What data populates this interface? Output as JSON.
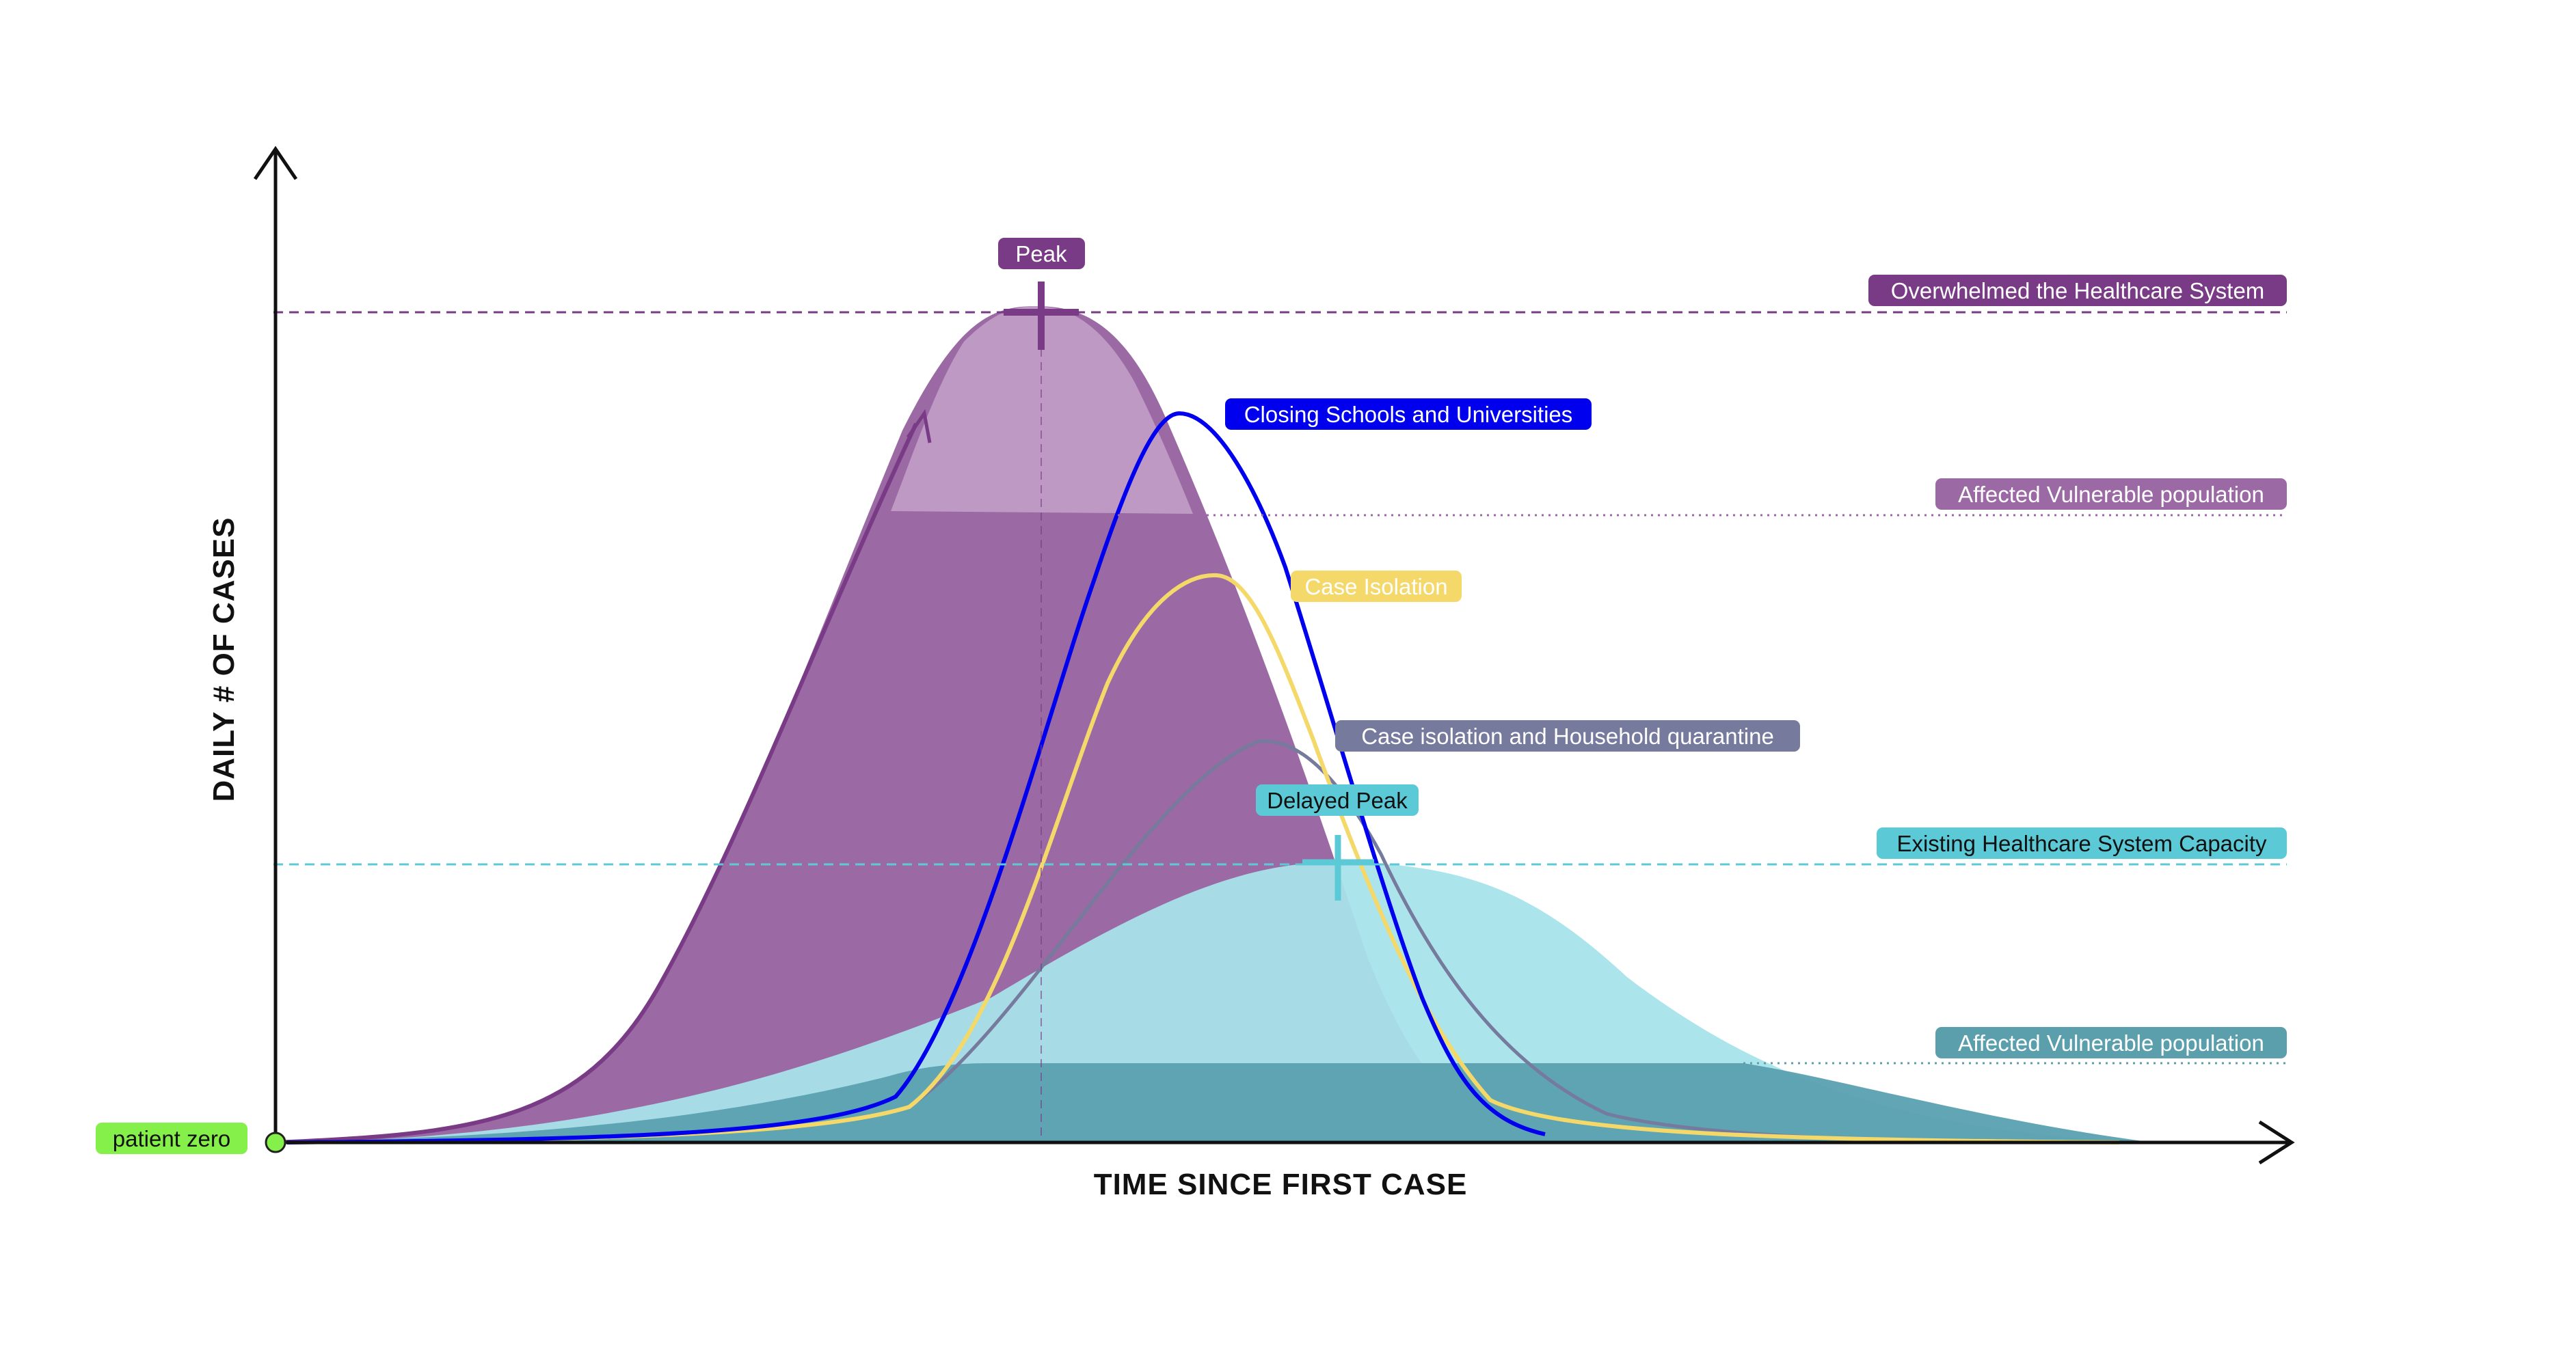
{
  "axes": {
    "y_title": "DAILY # OF CASES",
    "x_title": "TIME SINCE FIRST CASE"
  },
  "labels": {
    "peak": "Peak",
    "overwhelmed": "Overwhelmed the Healthcare System",
    "closing_schools": "Closing Schools and Universities",
    "affected_vulnerable_top": "Affected Vulnerable population",
    "case_isolation": "Case Isolation",
    "household_quarantine": "Case isolation and Household quarantine",
    "delayed_peak": "Delayed Peak",
    "existing_capacity": "Existing Healthcare System Capacity",
    "affected_vulnerable_bottom": "Affected Vulnerable population",
    "patient_zero": "patient zero"
  },
  "colors": {
    "purple_dark": "#7a3b86",
    "purple_fill": "#9b69a3",
    "purple_light": "#bd99c4",
    "purple_label": "#9b69a3",
    "teal_light": "#a8e3eb",
    "teal_dark": "#5aa0b0",
    "teal_label": "#5ccad6",
    "teal_bottom_label": "#5b9fac",
    "blue": "#0000ee",
    "yellow": "#f4d96a",
    "slate": "#767a9c",
    "green": "#86f04b",
    "axis": "#111111"
  }
}
